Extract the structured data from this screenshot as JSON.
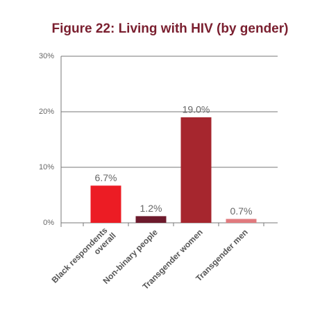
{
  "chart_data": {
    "type": "bar",
    "title": "Figure 22: Living with HIV (by gender)",
    "categories": [
      "Black respondents overall",
      "Non-binary people",
      "Transgender women",
      "Transgender men"
    ],
    "values": [
      6.7,
      1.2,
      19.0,
      0.7
    ],
    "value_labels": [
      "6.7%",
      "1.2%",
      "19.0%",
      "0.7%"
    ],
    "colors": [
      "#ec1c24",
      "#6d1a2c",
      "#a6262e",
      "#e17a7e"
    ],
    "ylim": [
      0,
      30
    ],
    "yticks": [
      {
        "value": 0,
        "label": "0%"
      },
      {
        "value": 10,
        "label": "10%"
      },
      {
        "value": 20,
        "label": "20%"
      },
      {
        "value": 30,
        "label": "30%"
      }
    ],
    "grid": true
  }
}
